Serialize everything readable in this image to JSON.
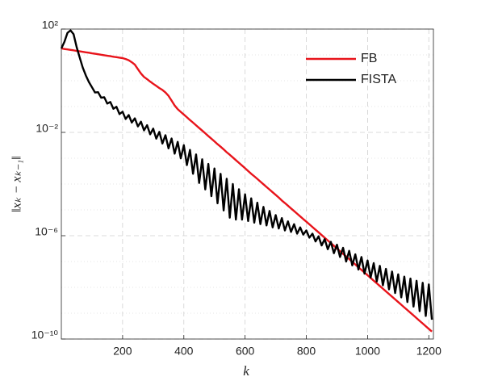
{
  "chart_data": {
    "type": "line",
    "xlabel": "k",
    "ylabel": "‖xₖ − xₖ₋₁‖",
    "x": [
      0,
      10,
      20,
      30,
      40,
      50,
      60,
      70,
      80,
      90,
      100,
      110,
      120,
      130,
      140,
      150,
      160,
      170,
      180,
      190,
      200,
      210,
      220,
      230,
      240,
      250,
      260,
      270,
      280,
      290,
      300,
      310,
      320,
      330,
      340,
      350,
      360,
      370,
      380,
      390,
      400,
      410,
      420,
      430,
      440,
      450,
      460,
      470,
      480,
      490,
      500,
      510,
      520,
      530,
      540,
      550,
      560,
      570,
      580,
      590,
      600,
      610,
      620,
      630,
      640,
      650,
      660,
      670,
      680,
      690,
      700,
      710,
      720,
      730,
      740,
      750,
      760,
      770,
      780,
      790,
      800,
      810,
      820,
      830,
      840,
      850,
      860,
      870,
      880,
      890,
      900,
      910,
      920,
      930,
      940,
      950,
      960,
      970,
      980,
      990,
      1000,
      1010,
      1020,
      1030,
      1040,
      1050,
      1060,
      1070,
      1080,
      1090,
      1100,
      1110,
      1120,
      1130,
      1140,
      1150,
      1160,
      1170,
      1180,
      1190,
      1200,
      1210
    ],
    "series": [
      {
        "name": "FB",
        "color": "#e8141b",
        "values": [
          17.8,
          17.0,
          16.3,
          15.6,
          15.0,
          14.3,
          13.7,
          13.2,
          12.6,
          12.1,
          11.5,
          11.1,
          10.6,
          10.1,
          9.7,
          9.3,
          8.9,
          8.5,
          8.2,
          7.8,
          7.5,
          6.9,
          6.2,
          5.2,
          4.2,
          2.8,
          1.9,
          1.4,
          1.15,
          0.93,
          0.76,
          0.63,
          0.52,
          0.44,
          0.35,
          0.26,
          0.17,
          0.11,
          0.079,
          0.062,
          0.049,
          0.0385,
          0.03,
          0.0239,
          0.0188,
          0.0148,
          0.0117,
          0.0092,
          0.0072,
          0.0057,
          0.0045,
          0.0035,
          0.0028,
          0.0022,
          0.0017,
          0.00136,
          0.00107,
          0.00084,
          0.00066,
          0.00052,
          0.00041,
          0.00032,
          0.00025,
          0.0002,
          0.000158,
          0.000124,
          9.8e-05,
          7.7e-05,
          6.1e-05,
          4.8e-05,
          3.8e-05,
          3e-05,
          2.3e-05,
          1.84e-05,
          1.45e-05,
          1.14e-05,
          9e-06,
          7.1e-06,
          5.6e-06,
          4.4e-06,
          3.5e-06,
          2.76e-06,
          2.17e-06,
          1.71e-06,
          1.35e-06,
          1.06e-06,
          8.35e-07,
          6.57e-07,
          5.18e-07,
          4.08e-07,
          3.21e-07,
          2.53e-07,
          1.99e-07,
          1.57e-07,
          1.24e-07,
          9.7e-08,
          7.66e-08,
          6.02e-08,
          4.75e-08,
          3.74e-08,
          2.94e-08,
          2.32e-08,
          1.82e-08,
          1.44e-08,
          1.13e-08,
          8.9e-09,
          7.02e-09,
          5.52e-09,
          4.36e-09,
          3.43e-09,
          2.7e-09,
          2.13e-09,
          1.67e-09,
          1.32e-09,
          1.04e-09,
          8.2e-10,
          6.44e-10,
          5.06e-10,
          4e-10,
          3.14e-10,
          2.47e-10,
          1.95e-10
        ]
      },
      {
        "name": "FISTA",
        "color": "#000000",
        "values": [
          17.8,
          32,
          71,
          89,
          63,
          20,
          7.9,
          3.2,
          1.6,
          0.89,
          0.56,
          0.35,
          0.36,
          0.22,
          0.23,
          0.13,
          0.15,
          0.082,
          0.098,
          0.051,
          0.063,
          0.033,
          0.047,
          0.024,
          0.035,
          0.017,
          0.026,
          0.012,
          0.019,
          0.0084,
          0.014,
          0.0057,
          0.0105,
          0.0037,
          0.0078,
          0.0024,
          0.0058,
          0.0015,
          0.0043,
          0.00099,
          0.0032,
          0.00054,
          0.0021,
          0.00025,
          0.0014,
          0.00011,
          0.00091,
          6.2e-05,
          0.0006,
          3.4e-05,
          0.0004,
          1.8e-05,
          0.00025,
          9.5e-06,
          0.00016,
          5e-06,
          0.0001,
          4.2e-06,
          6.3e-05,
          4.2e-06,
          4e-05,
          3.7e-06,
          2.8e-05,
          3.2e-06,
          1.9e-05,
          2.8e-06,
          1.3e-05,
          2.5e-06,
          9.1e-06,
          2.1e-06,
          6.3e-06,
          1.9e-06,
          4.8e-06,
          1.6e-06,
          3.6e-06,
          1.4e-06,
          2.8e-06,
          1.2e-06,
          2.1e-06,
          1.1e-06,
          1.6e-06,
          8.4e-07,
          1.2e-06,
          6e-07,
          9.5e-07,
          4.2e-07,
          7.4e-07,
          3e-07,
          5.8e-07,
          2.1e-07,
          4.5e-07,
          1.5e-07,
          3.4e-07,
          1e-07,
          2.6e-07,
          7.1e-08,
          1.9e-07,
          4.9e-08,
          1.5e-07,
          3.4e-08,
          1.1e-07,
          2.4e-08,
          8.7e-08,
          1.7e-08,
          6.8e-08,
          1.2e-08,
          5.2e-08,
          8.4e-09,
          4.1e-08,
          6e-09,
          3.2e-08,
          4.1e-09,
          2.6e-08,
          2.7e-09,
          2.2e-08,
          1.8e-09,
          1.8e-08,
          1.2e-09,
          1.5e-08,
          7.8e-10,
          1.3e-08,
          5.6e-10
        ]
      }
    ],
    "xlim": [
      0,
      1215
    ],
    "xticks": [
      200,
      400,
      600,
      800,
      1000,
      1200
    ],
    "ylim": [
      1e-10,
      100
    ],
    "ylog": true,
    "yticks": [
      {
        "value": 1e-10,
        "label": "10⁻¹⁰"
      },
      {
        "value": 1e-06,
        "label": "10⁻⁶"
      },
      {
        "value": 0.01,
        "label": "10⁻²"
      },
      {
        "value": 100,
        "label": "10²"
      }
    ],
    "yminorticks": [
      1e-09,
      1e-08,
      1e-07,
      1e-05,
      0.0001,
      0.001,
      0.1,
      1,
      10
    ],
    "grid": true,
    "legend": "northeast"
  }
}
